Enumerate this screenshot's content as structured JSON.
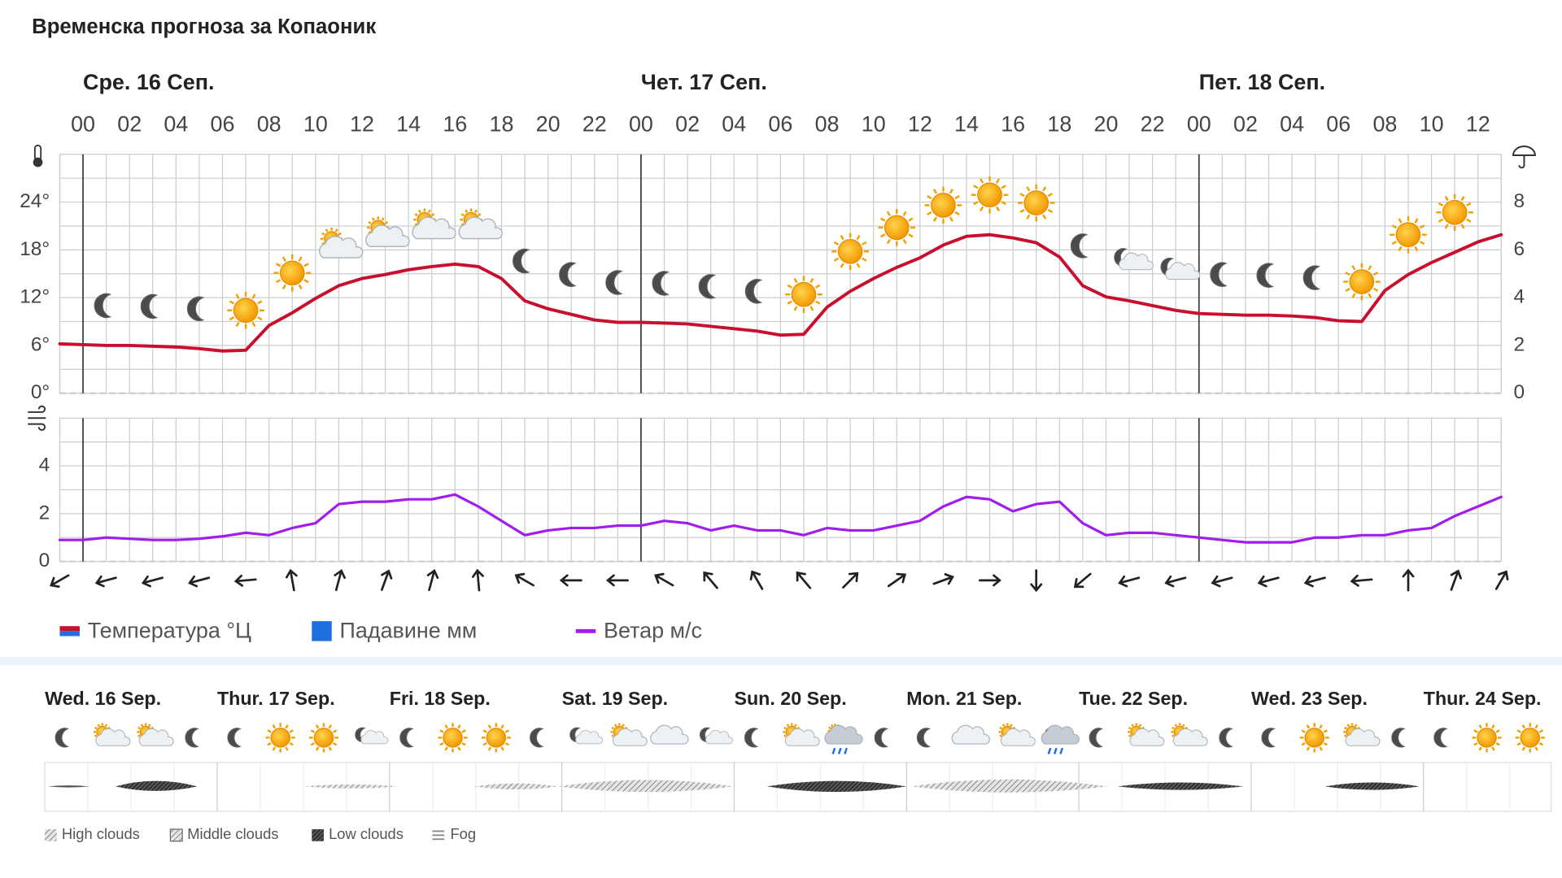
{
  "title": "Временска прогноза за Копаоник",
  "chart_data": [
    {
      "type": "line",
      "day_labels": [
        {
          "value": 0,
          "label": "Сре. 16 Сеп."
        },
        {
          "value": 24,
          "label": "Чет. 17 Сеп."
        },
        {
          "value": 48,
          "label": "Пет. 18 Сеп."
        }
      ],
      "x": [
        -1,
        0,
        1,
        2,
        3,
        4,
        5,
        6,
        7,
        8,
        9,
        10,
        11,
        12,
        13,
        14,
        15,
        16,
        17,
        18,
        19,
        20,
        21,
        22,
        23,
        24,
        25,
        26,
        27,
        28,
        29,
        30,
        31,
        32,
        33,
        34,
        35,
        36,
        37,
        38,
        39,
        40,
        41,
        42,
        43,
        44,
        45,
        46,
        47,
        48,
        49,
        50,
        51,
        52,
        53,
        54,
        55,
        56,
        57,
        58,
        59,
        60,
        61
      ],
      "series": [
        {
          "name": "Температура °Ц",
          "color": "#c8102e",
          "values": [
            6.2,
            6.1,
            6.0,
            6.0,
            5.9,
            5.8,
            5.6,
            5.3,
            5.4,
            8.5,
            10.1,
            11.9,
            13.5,
            14.4,
            14.9,
            15.5,
            15.9,
            16.2,
            15.9,
            14.4,
            11.6,
            10.6,
            9.9,
            9.2,
            8.9,
            8.9,
            8.8,
            8.7,
            8.4,
            8.1,
            7.8,
            7.3,
            7.4,
            10.8,
            12.8,
            14.4,
            15.8,
            17.0,
            18.6,
            19.7,
            19.9,
            19.5,
            18.9,
            17.1,
            13.5,
            12.1,
            11.6,
            11.0,
            10.4,
            10.0,
            9.9,
            9.8,
            9.8,
            9.7,
            9.5,
            9.1,
            9.0,
            12.9,
            14.9,
            16.4,
            17.7,
            19.0,
            19.9
          ]
        },
        {
          "name": "Падавине мм",
          "color": "#1f6fe0",
          "axis": "y2",
          "values": [
            0,
            0,
            0,
            0,
            0,
            0,
            0,
            0,
            0,
            0,
            0,
            0,
            0,
            0,
            0,
            0,
            0,
            0,
            0,
            0,
            0,
            0,
            0,
            0,
            0,
            0,
            0,
            0,
            0,
            0,
            0,
            0,
            0,
            0,
            0,
            0,
            0,
            0,
            0,
            0,
            0,
            0,
            0,
            0,
            0,
            0,
            0,
            0,
            0,
            0,
            0,
            0,
            0,
            0,
            0,
            0,
            0,
            0,
            0,
            0,
            0,
            0,
            0
          ]
        }
      ],
      "xlim": [
        -1,
        61
      ],
      "xticks": [
        {
          "value": 0,
          "label": "00"
        },
        {
          "value": 2,
          "label": "02"
        },
        {
          "value": 4,
          "label": "04"
        },
        {
          "value": 6,
          "label": "06"
        },
        {
          "value": 8,
          "label": "08"
        },
        {
          "value": 10,
          "label": "10"
        },
        {
          "value": 12,
          "label": "12"
        },
        {
          "value": 14,
          "label": "14"
        },
        {
          "value": 16,
          "label": "16"
        },
        {
          "value": 18,
          "label": "18"
        },
        {
          "value": 20,
          "label": "20"
        },
        {
          "value": 22,
          "label": "22"
        },
        {
          "value": 24,
          "label": "00"
        },
        {
          "value": 26,
          "label": "02"
        },
        {
          "value": 28,
          "label": "04"
        },
        {
          "value": 30,
          "label": "06"
        },
        {
          "value": 32,
          "label": "08"
        },
        {
          "value": 34,
          "label": "10"
        },
        {
          "value": 36,
          "label": "12"
        },
        {
          "value": 38,
          "label": "14"
        },
        {
          "value": 40,
          "label": "16"
        },
        {
          "value": 42,
          "label": "18"
        },
        {
          "value": 44,
          "label": "20"
        },
        {
          "value": 46,
          "label": "22"
        },
        {
          "value": 48,
          "label": "00"
        },
        {
          "value": 50,
          "label": "02"
        },
        {
          "value": 52,
          "label": "04"
        },
        {
          "value": 54,
          "label": "06"
        },
        {
          "value": 56,
          "label": "08"
        },
        {
          "value": 58,
          "label": "10"
        },
        {
          "value": 60,
          "label": "12"
        }
      ],
      "ylim": [
        0,
        30
      ],
      "yticks": [
        {
          "value": 0,
          "label": "0°"
        },
        {
          "value": 6,
          "label": "6°"
        },
        {
          "value": 12,
          "label": "12°"
        },
        {
          "value": 18,
          "label": "18°"
        },
        {
          "value": 24,
          "label": "24°"
        }
      ],
      "yminor": [
        3,
        9,
        15,
        21,
        27
      ],
      "y2lim": [
        0,
        10
      ],
      "y2ticks": [
        0,
        2,
        4,
        6,
        8
      ],
      "grid": true,
      "icons": {
        "x": [
          1,
          3,
          5,
          7,
          9,
          11,
          13,
          15,
          17,
          19,
          21,
          23,
          25,
          27,
          29,
          31,
          33,
          35,
          37,
          39,
          41,
          43,
          45,
          47,
          49,
          51,
          53,
          55,
          57,
          59
        ],
        "kinds": [
          "moon",
          "moon",
          "moon",
          "sun",
          "sun",
          "sun-cloud",
          "sun-cloud",
          "sun-cloud",
          "sun-cloud",
          "moon",
          "moon",
          "moon",
          "moon",
          "moon",
          "moon",
          "sun",
          "sun",
          "sun",
          "sun",
          "sun",
          "sun",
          "moon",
          "moon-cloud",
          "moon-cloud",
          "moon",
          "moon",
          "moon",
          "sun",
          "sun",
          "sun"
        ]
      }
    },
    {
      "type": "line",
      "x": [
        -1,
        0,
        1,
        2,
        3,
        4,
        5,
        6,
        7,
        8,
        9,
        10,
        11,
        12,
        13,
        14,
        15,
        16,
        17,
        18,
        19,
        20,
        21,
        22,
        23,
        24,
        25,
        26,
        27,
        28,
        29,
        30,
        31,
        32,
        33,
        34,
        35,
        36,
        37,
        38,
        39,
        40,
        41,
        42,
        43,
        44,
        45,
        46,
        47,
        48,
        49,
        50,
        51,
        52,
        53,
        54,
        55,
        56,
        57,
        58,
        59,
        60,
        61
      ],
      "series": [
        {
          "name": "Ветар м/с",
          "color": "#a21cf0",
          "values": [
            0.9,
            0.9,
            1.0,
            0.95,
            0.9,
            0.9,
            0.95,
            1.05,
            1.2,
            1.1,
            1.4,
            1.6,
            2.4,
            2.5,
            2.5,
            2.6,
            2.6,
            2.8,
            2.3,
            1.7,
            1.1,
            1.3,
            1.4,
            1.4,
            1.5,
            1.5,
            1.7,
            1.6,
            1.3,
            1.5,
            1.3,
            1.3,
            1.1,
            1.4,
            1.3,
            1.3,
            1.5,
            1.7,
            2.3,
            2.7,
            2.6,
            2.1,
            2.4,
            2.5,
            1.6,
            1.1,
            1.2,
            1.2,
            1.1,
            1.0,
            0.9,
            0.8,
            0.8,
            0.8,
            1.0,
            1.0,
            1.1,
            1.1,
            1.3,
            1.4,
            1.9,
            2.3,
            2.7
          ]
        }
      ],
      "xlim": [
        -1,
        61
      ],
      "ylim": [
        0,
        6
      ],
      "yticks": [
        0,
        2,
        4
      ],
      "yminor": [
        1,
        3,
        5
      ],
      "grid": true,
      "wind_direction": {
        "x": [
          -1,
          1,
          3,
          5,
          7,
          9,
          11,
          13,
          15,
          17,
          19,
          21,
          23,
          25,
          27,
          29,
          31,
          33,
          35,
          37,
          39,
          41,
          43,
          45,
          47,
          49,
          51,
          53,
          55,
          57,
          59,
          61
        ],
        "angle": [
          240,
          255,
          255,
          255,
          265,
          350,
          15,
          20,
          15,
          355,
          300,
          270,
          270,
          300,
          320,
          330,
          320,
          45,
          55,
          70,
          90,
          180,
          230,
          255,
          255,
          255,
          255,
          255,
          265,
          0,
          20,
          30
        ]
      }
    }
  ],
  "daily": {
    "days": [
      "Wed. 16 Sep.",
      "Thur. 17 Sep.",
      "Fri. 18 Sep.",
      "Sat. 19 Sep.",
      "Sun. 20 Sep.",
      "Mon. 21 Sep.",
      "Tue. 22 Sep.",
      "Wed. 23 Sep.",
      "Thur. 24 Sep."
    ],
    "icons": [
      [
        "moon",
        "sun-cloud",
        "sun-cloud",
        "moon"
      ],
      [
        "moon",
        "sun",
        "sun",
        "moon-cloud"
      ],
      [
        "moon",
        "sun",
        "sun",
        "moon"
      ],
      [
        "moon-cloud",
        "sun-cloud",
        "cloud",
        "moon-cloud"
      ],
      [
        "moon",
        "sun-cloud",
        "rain",
        "moon"
      ],
      [
        "moon",
        "cloud",
        "sun-cloud",
        "moon-rain"
      ],
      [
        "moon",
        "sun-cloud",
        "sun-cloud",
        "moon"
      ],
      [
        "moon",
        "sun",
        "sun-cloud",
        "moon"
      ],
      [
        "moon",
        "sun",
        "sun"
      ]
    ]
  },
  "cloud_legend": [
    "High clouds",
    "Middle clouds",
    "Low clouds",
    "Fog"
  ]
}
